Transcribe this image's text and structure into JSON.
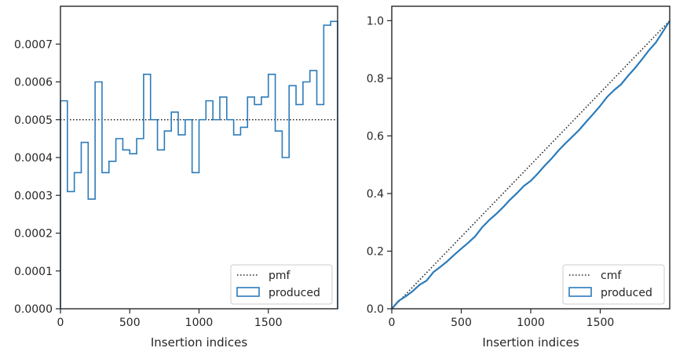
{
  "chart_data": [
    {
      "type": "histogram",
      "xlabel": "Insertion indices",
      "ylabel": "",
      "xlim": [
        0,
        2000
      ],
      "ylim": [
        0,
        0.0008
      ],
      "xticks": [
        0,
        500,
        1000,
        1500
      ],
      "xtick_labels": [
        "0",
        "500",
        "1000",
        "1500"
      ],
      "yticks": [
        0,
        0.0001,
        0.0002,
        0.0003,
        0.0004,
        0.0005,
        0.0006,
        0.0007
      ],
      "ytick_labels": [
        "0.0000",
        "0.0001",
        "0.0002",
        "0.0003",
        "0.0004",
        "0.0005",
        "0.0006",
        "0.0007"
      ],
      "legend_position": "lower-right",
      "reference_line": {
        "name": "pmf",
        "value": 0.0005,
        "style": "dotted",
        "color": "#222222"
      },
      "series": [
        {
          "name": "produced",
          "color": "#2b7bba",
          "bin_width": 50,
          "bin_start": 0,
          "values": [
            0.00055,
            0.00031,
            0.00036,
            0.00044,
            0.00029,
            0.0006,
            0.00036,
            0.00039,
            0.00045,
            0.00042,
            0.00041,
            0.00045,
            0.00062,
            0.0005,
            0.00042,
            0.00047,
            0.00052,
            0.00046,
            0.0005,
            0.00036,
            0.0005,
            0.00055,
            0.0005,
            0.00056,
            0.0005,
            0.00046,
            0.00048,
            0.00056,
            0.00054,
            0.00056,
            0.00062,
            0.00047,
            0.0004,
            0.00059,
            0.00054,
            0.0006,
            0.00063,
            0.00054,
            0.00075,
            0.00076
          ]
        }
      ]
    },
    {
      "type": "line",
      "xlabel": "Insertion indices",
      "ylabel": "",
      "xlim": [
        0,
        2000
      ],
      "ylim": [
        0,
        1.05
      ],
      "xticks": [
        0,
        500,
        1000,
        1500
      ],
      "xtick_labels": [
        "0",
        "500",
        "1000",
        "1500"
      ],
      "yticks": [
        0,
        0.2,
        0.4,
        0.6,
        0.8,
        1.0
      ],
      "ytick_labels": [
        "0.0",
        "0.2",
        "0.4",
        "0.6",
        "0.8",
        "1.0"
      ],
      "legend_position": "lower-right",
      "reference_line": {
        "name": "cmf",
        "points": [
          [
            0,
            0
          ],
          [
            2000,
            1.0
          ]
        ],
        "style": "dotted",
        "color": "#222222"
      },
      "series": [
        {
          "name": "produced",
          "color": "#2b7bba",
          "x": [
            0,
            50,
            100,
            150,
            200,
            250,
            300,
            350,
            400,
            450,
            500,
            550,
            600,
            650,
            700,
            750,
            800,
            850,
            900,
            950,
            1000,
            1050,
            1100,
            1150,
            1200,
            1250,
            1300,
            1350,
            1400,
            1450,
            1500,
            1550,
            1600,
            1650,
            1700,
            1750,
            1800,
            1850,
            1900,
            1950,
            2000
          ],
          "y": [
            0,
            0.0275,
            0.043,
            0.061,
            0.083,
            0.0975,
            0.1275,
            0.1455,
            0.165,
            0.1875,
            0.2085,
            0.229,
            0.2515,
            0.2825,
            0.3075,
            0.3285,
            0.352,
            0.378,
            0.401,
            0.426,
            0.444,
            0.469,
            0.4965,
            0.5215,
            0.5495,
            0.5745,
            0.5975,
            0.6215,
            0.6495,
            0.6765,
            0.7045,
            0.7355,
            0.759,
            0.779,
            0.8085,
            0.8355,
            0.8655,
            0.897,
            0.924,
            0.9615,
            0.9995
          ]
        }
      ]
    }
  ]
}
